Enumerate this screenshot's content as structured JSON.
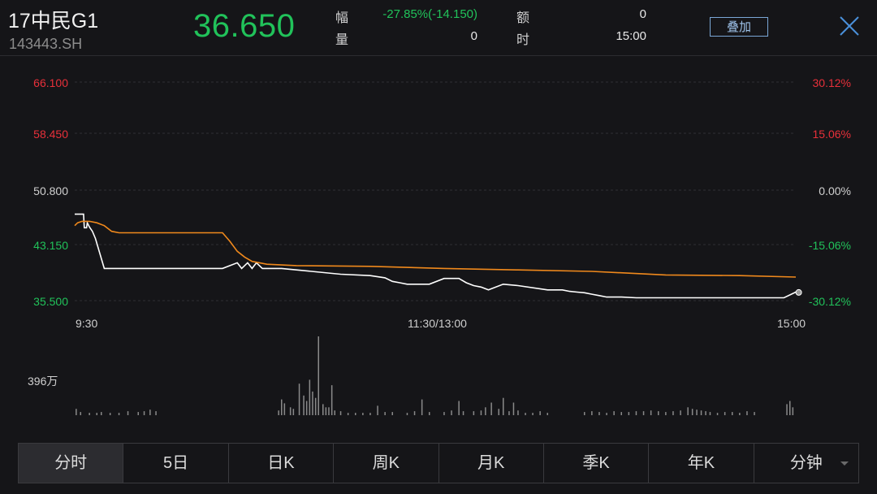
{
  "header": {
    "name": "17中民G1",
    "code": "143443.SH",
    "price": "36.650",
    "change_label": "幅",
    "change_value": "-27.85%(-14.150)",
    "volume_label": "量",
    "volume_value": "0",
    "amount_label": "额",
    "amount_value": "0",
    "time_label": "时",
    "time_value": "15:00",
    "overlay_button": "叠加",
    "close_icon": "close-icon"
  },
  "chart_data": {
    "type": "line",
    "y_left_ticks": [
      "66.100",
      "58.450",
      "50.800",
      "43.150",
      "35.500"
    ],
    "y_right_ticks": [
      "30.12%",
      "15.06%",
      "0.00%",
      "-15.06%",
      "-30.12%"
    ],
    "ylim": [
      35.5,
      66.1
    ],
    "x_ticks": [
      "9:30",
      "11:30/13:00",
      "15:00"
    ],
    "volume_label": "396万",
    "series": [
      {
        "color": "#ffffff",
        "x": [
          0,
          6,
          6.5,
          8,
          8.5,
          10,
          12,
          14,
          20,
          30,
          40,
          60,
          80,
          100,
          110,
          113,
          117,
          120,
          123,
          127,
          130,
          140,
          150,
          180,
          200,
          210,
          215,
          220,
          225,
          240,
          250,
          255,
          258,
          260,
          265,
          270,
          275,
          280,
          290,
          300,
          320,
          330,
          335,
          340,
          345,
          350,
          355,
          360,
          370,
          380,
          390,
          400,
          410,
          420,
          430,
          440,
          450,
          460,
          470,
          480,
          488,
          490
        ],
        "y": [
          47.6,
          47.6,
          45.7,
          45.7,
          46.4,
          45.8,
          45.2,
          44.2,
          40.0,
          40.0,
          40.0,
          40.0,
          40.0,
          40.0,
          40.8,
          40.0,
          40.8,
          40.0,
          40.8,
          40.0,
          40.0,
          40.0,
          39.8,
          39.2,
          39.0,
          38.7,
          38.2,
          38.0,
          37.8,
          37.8,
          38.6,
          38.6,
          38.6,
          38.6,
          38.0,
          37.6,
          37.4,
          37.0,
          37.8,
          37.6,
          37.0,
          37.0,
          36.8,
          36.7,
          36.6,
          36.4,
          36.2,
          36.0,
          36.0,
          35.9,
          35.9,
          35.9,
          35.9,
          35.9,
          35.9,
          35.9,
          35.9,
          35.9,
          35.9,
          35.9,
          36.7,
          36.65
        ]
      },
      {
        "color": "#f0891c",
        "x": [
          0,
          2,
          5,
          10,
          15,
          20,
          25,
          30,
          60,
          90,
          100,
          105,
          110,
          115,
          120,
          130,
          150,
          200,
          250,
          300,
          350,
          400,
          450,
          488
        ],
        "y": [
          46.0,
          46.4,
          46.6,
          46.6,
          46.4,
          46.0,
          45.2,
          45.0,
          45.0,
          45.0,
          45.0,
          43.8,
          42.4,
          41.6,
          41.0,
          40.6,
          40.4,
          40.3,
          40.0,
          39.8,
          39.6,
          39.1,
          39.0,
          38.8
        ]
      }
    ],
    "volumes": [
      {
        "x": 1,
        "v": 0.08
      },
      {
        "x": 4,
        "v": 0.04
      },
      {
        "x": 10,
        "v": 0.03
      },
      {
        "x": 15,
        "v": 0.03
      },
      {
        "x": 18,
        "v": 0.04
      },
      {
        "x": 24,
        "v": 0.03
      },
      {
        "x": 30,
        "v": 0.03
      },
      {
        "x": 36,
        "v": 0.05
      },
      {
        "x": 43,
        "v": 0.04
      },
      {
        "x": 47,
        "v": 0.05
      },
      {
        "x": 51,
        "v": 0.07
      },
      {
        "x": 55,
        "v": 0.05
      },
      {
        "x": 138,
        "v": 0.06
      },
      {
        "x": 140,
        "v": 0.2
      },
      {
        "x": 142,
        "v": 0.15
      },
      {
        "x": 146,
        "v": 0.1
      },
      {
        "x": 148,
        "v": 0.08
      },
      {
        "x": 152,
        "v": 0.4
      },
      {
        "x": 155,
        "v": 0.25
      },
      {
        "x": 157,
        "v": 0.18
      },
      {
        "x": 159,
        "v": 0.45
      },
      {
        "x": 161,
        "v": 0.3
      },
      {
        "x": 163,
        "v": 0.22
      },
      {
        "x": 165,
        "v": 1.0
      },
      {
        "x": 168,
        "v": 0.14
      },
      {
        "x": 170,
        "v": 0.1
      },
      {
        "x": 172,
        "v": 0.1
      },
      {
        "x": 174,
        "v": 0.38
      },
      {
        "x": 176,
        "v": 0.06
      },
      {
        "x": 180,
        "v": 0.05
      },
      {
        "x": 185,
        "v": 0.03
      },
      {
        "x": 190,
        "v": 0.03
      },
      {
        "x": 195,
        "v": 0.03
      },
      {
        "x": 200,
        "v": 0.03
      },
      {
        "x": 205,
        "v": 0.12
      },
      {
        "x": 210,
        "v": 0.04
      },
      {
        "x": 215,
        "v": 0.04
      },
      {
        "x": 225,
        "v": 0.03
      },
      {
        "x": 230,
        "v": 0.05
      },
      {
        "x": 235,
        "v": 0.2
      },
      {
        "x": 240,
        "v": 0.04
      },
      {
        "x": 250,
        "v": 0.04
      },
      {
        "x": 255,
        "v": 0.06
      },
      {
        "x": 260,
        "v": 0.18
      },
      {
        "x": 263,
        "v": 0.05
      },
      {
        "x": 270,
        "v": 0.05
      },
      {
        "x": 275,
        "v": 0.06
      },
      {
        "x": 278,
        "v": 0.1
      },
      {
        "x": 282,
        "v": 0.16
      },
      {
        "x": 287,
        "v": 0.08
      },
      {
        "x": 290,
        "v": 0.22
      },
      {
        "x": 294,
        "v": 0.05
      },
      {
        "x": 297,
        "v": 0.16
      },
      {
        "x": 300,
        "v": 0.06
      },
      {
        "x": 305,
        "v": 0.03
      },
      {
        "x": 310,
        "v": 0.03
      },
      {
        "x": 315,
        "v": 0.05
      },
      {
        "x": 320,
        "v": 0.03
      },
      {
        "x": 345,
        "v": 0.04
      },
      {
        "x": 350,
        "v": 0.05
      },
      {
        "x": 355,
        "v": 0.04
      },
      {
        "x": 360,
        "v": 0.03
      },
      {
        "x": 365,
        "v": 0.05
      },
      {
        "x": 370,
        "v": 0.04
      },
      {
        "x": 375,
        "v": 0.04
      },
      {
        "x": 380,
        "v": 0.05
      },
      {
        "x": 385,
        "v": 0.05
      },
      {
        "x": 390,
        "v": 0.06
      },
      {
        "x": 395,
        "v": 0.05
      },
      {
        "x": 400,
        "v": 0.04
      },
      {
        "x": 405,
        "v": 0.05
      },
      {
        "x": 410,
        "v": 0.06
      },
      {
        "x": 415,
        "v": 0.1
      },
      {
        "x": 418,
        "v": 0.08
      },
      {
        "x": 421,
        "v": 0.07
      },
      {
        "x": 424,
        "v": 0.06
      },
      {
        "x": 427,
        "v": 0.05
      },
      {
        "x": 430,
        "v": 0.04
      },
      {
        "x": 435,
        "v": 0.03
      },
      {
        "x": 440,
        "v": 0.04
      },
      {
        "x": 445,
        "v": 0.04
      },
      {
        "x": 450,
        "v": 0.03
      },
      {
        "x": 455,
        "v": 0.05
      },
      {
        "x": 460,
        "v": 0.04
      },
      {
        "x": 482,
        "v": 0.14
      },
      {
        "x": 484,
        "v": 0.18
      },
      {
        "x": 486,
        "v": 0.1
      }
    ]
  },
  "tabs": [
    {
      "label": "分时",
      "active": true
    },
    {
      "label": "5日"
    },
    {
      "label": "日K"
    },
    {
      "label": "周K"
    },
    {
      "label": "月K"
    },
    {
      "label": "季K"
    },
    {
      "label": "年K"
    },
    {
      "label": "分钟",
      "dropdown": true
    }
  ]
}
